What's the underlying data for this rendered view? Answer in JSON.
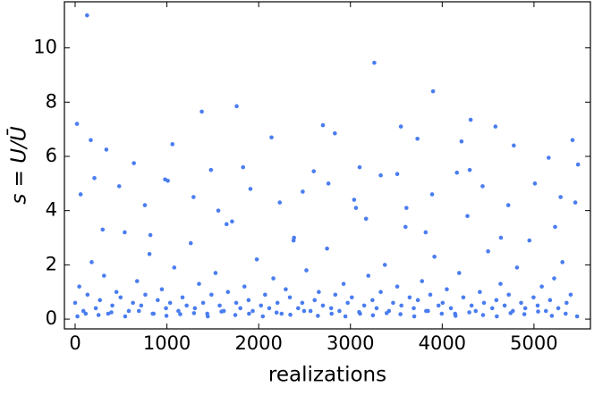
{
  "chart_data": {
    "type": "scatter",
    "xlabel": "realizations",
    "ylabel": "s = U/Ū",
    "xlim": [
      -117,
      5615
    ],
    "ylim": [
      -0.36,
      11.7
    ],
    "xticks": [
      0,
      1000,
      2000,
      3000,
      4000,
      5000
    ],
    "yticks": [
      0,
      2,
      4,
      6,
      8,
      10
    ],
    "series": [
      {
        "name": null,
        "color": "#4a7df0",
        "x": [
          0,
          45,
          90,
          135,
          180,
          225,
          270,
          315,
          360,
          405,
          450,
          495,
          540,
          585,
          630,
          675,
          720,
          765,
          810,
          855,
          900,
          945,
          990,
          1035,
          1080,
          1125,
          1170,
          1215,
          1260,
          1305,
          1350,
          1395,
          1440,
          1485,
          1530,
          1575,
          1620,
          1665,
          1710,
          1755,
          1800,
          1845,
          1890,
          1935,
          1980,
          2025,
          2070,
          2115,
          2160,
          2205,
          2250,
          2295,
          2340,
          2385,
          2430,
          2475,
          2520,
          2565,
          2610,
          2655,
          2700,
          2745,
          2790,
          2835,
          2880,
          2925,
          2970,
          3015,
          3060,
          3105,
          3150,
          3195,
          3240,
          3285,
          3330,
          3375,
          3420,
          3465,
          3510,
          3555,
          3600,
          3645,
          3690,
          3735,
          3780,
          3825,
          3870,
          3915,
          3960,
          4005,
          4050,
          4095,
          4140,
          4185,
          4230,
          4275,
          4320,
          4365,
          4410,
          4455,
          4500,
          4545,
          4590,
          4635,
          4680,
          4725,
          4770,
          4815,
          4860,
          4905,
          4950,
          4995,
          5040,
          5085,
          5130,
          5175,
          5220,
          5265,
          5310,
          5355,
          5400,
          130,
          20,
          3260,
          3900,
          1760,
          1380,
          2700,
          4310,
          3550,
          4580,
          2140,
          2830,
          170,
          1060,
          5420,
          4210,
          3730,
          340,
          4780,
          5160,
          2600,
          1830,
          3100,
          5480,
          3510,
          4300,
          640,
          980,
          1480,
          60,
          210,
          480,
          760,
          1010,
          1290,
          1560,
          1910,
          2230,
          2480,
          2760,
          3040,
          3330,
          3610,
          3890,
          4160,
          4440,
          4720,
          5010,
          5290,
          5450,
          300,
          820,
          1650,
          2380,
          3170,
          3820,
          4640,
          5230,
          25,
          115,
          255,
          395,
          545,
          695,
          845,
          995,
          1145,
          1295,
          1445,
          1595,
          1745,
          1895,
          2045,
          2195,
          2345,
          2495,
          2645,
          2795,
          2945,
          3095,
          3245,
          3395,
          3545,
          3695,
          3845,
          3995,
          4145,
          4295,
          4445,
          4595,
          4745,
          4895,
          5045,
          5195,
          5345,
          5470
        ],
        "y": [
          0.6,
          1.2,
          0.3,
          0.9,
          2.1,
          0.4,
          0.7,
          1.6,
          0.2,
          0.5,
          1.0,
          0.8,
          3.2,
          0.3,
          0.6,
          1.4,
          0.5,
          0.9,
          2.4,
          0.2,
          0.7,
          1.1,
          0.4,
          0.6,
          1.9,
          0.3,
          0.8,
          0.5,
          2.8,
          0.4,
          1.3,
          0.6,
          0.2,
          0.9,
          1.7,
          0.5,
          0.3,
          1.0,
          3.6,
          0.6,
          0.4,
          1.2,
          0.7,
          0.3,
          2.2,
          0.5,
          0.9,
          0.4,
          1.5,
          0.6,
          0.2,
          1.1,
          0.8,
          3.0,
          0.4,
          0.6,
          1.8,
          0.3,
          0.7,
          1.0,
          0.5,
          2.6,
          0.4,
          0.9,
          0.3,
          1.3,
          0.6,
          0.8,
          4.1,
          0.2,
          0.5,
          1.6,
          0.7,
          0.4,
          1.0,
          2.0,
          0.3,
          0.6,
          1.2,
          0.5,
          3.4,
          0.8,
          0.4,
          0.7,
          1.4,
          0.3,
          0.9,
          2.3,
          0.5,
          0.6,
          1.1,
          0.4,
          0.2,
          1.7,
          0.8,
          3.8,
          0.5,
          0.3,
          1.0,
          0.6,
          2.5,
          0.4,
          0.7,
          1.3,
          0.5,
          0.9,
          0.3,
          1.9,
          0.6,
          0.4,
          2.9,
          0.8,
          0.5,
          1.2,
          0.3,
          0.7,
          1.5,
          0.4,
          2.1,
          0.6,
          0.9,
          11.2,
          7.2,
          9.45,
          8.4,
          7.85,
          7.65,
          7.15,
          7.35,
          7.1,
          7.1,
          6.7,
          6.85,
          6.6,
          6.45,
          6.6,
          6.55,
          6.65,
          6.25,
          6.4,
          5.95,
          5.45,
          5.6,
          5.6,
          5.7,
          5.35,
          5.5,
          5.75,
          5.15,
          5.5,
          4.6,
          5.2,
          4.9,
          4.2,
          5.1,
          4.5,
          4.0,
          4.8,
          4.3,
          4.7,
          5.0,
          4.4,
          5.3,
          4.1,
          4.6,
          5.4,
          4.9,
          4.2,
          5.0,
          4.5,
          4.3,
          3.3,
          3.1,
          3.5,
          2.9,
          3.7,
          3.2,
          3.0,
          3.4,
          0.1,
          0.2,
          0.15,
          0.25,
          0.1,
          0.3,
          0.2,
          0.12,
          0.18,
          0.22,
          0.1,
          0.28,
          0.15,
          0.2,
          0.1,
          0.24,
          0.16,
          0.3,
          0.12,
          0.2,
          0.1,
          0.26,
          0.14,
          0.22,
          0.18,
          0.1,
          0.3,
          0.2,
          0.12,
          0.25,
          0.15,
          0.1,
          0.22,
          0.18,
          0.28,
          0.12,
          0.2,
          0.1
        ]
      }
    ]
  }
}
